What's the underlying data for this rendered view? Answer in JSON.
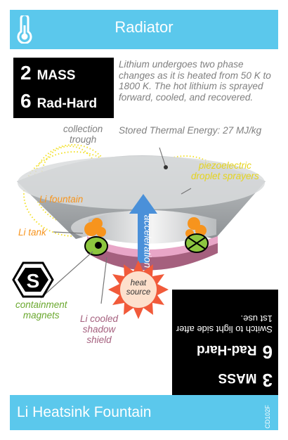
{
  "card": {
    "category": "Radiator",
    "category_icon": "thermometer-icon",
    "stats": {
      "mass": "2",
      "mass_label": "MASS",
      "rad_hard": "6",
      "rad_hard_label": "Rad-Hard"
    },
    "description": "Lithium undergoes two phase changes as it is heated from 50 K to 1800 K. The hot lithium is sprayed forward,  cooled, and recovered.",
    "thermal_energy": "Stored Thermal Energy: 27 MJ/kg",
    "diagram_labels": {
      "collection_trough": "collection\ntrough",
      "piezo": "piezoelectric\ndroplet sprayers",
      "li_fountain": "Li fountain",
      "li_tank": "Li tank",
      "acceleration": "acceleration",
      "heat_source": "heat\nsource",
      "containment": "containment\nmagnets",
      "shadow_shield": "Li cooled\nshadow\nshield"
    },
    "flip_side": {
      "mass": "3",
      "mass_label": "MASS",
      "rad_hard": "6",
      "rad_hard_label": "Rad-Hard",
      "note": "Switch to light side after 1st use."
    },
    "name": "Li Heatsink Fountain",
    "card_code": "CD102F",
    "supply_icons": 4,
    "colors": {
      "bar": "#5bc8ec",
      "orange": "#f7941d",
      "yellow": "#f3e12a",
      "green": "#8dc63f",
      "pink": "#a5607e",
      "arrow": "#4a90d9"
    }
  }
}
